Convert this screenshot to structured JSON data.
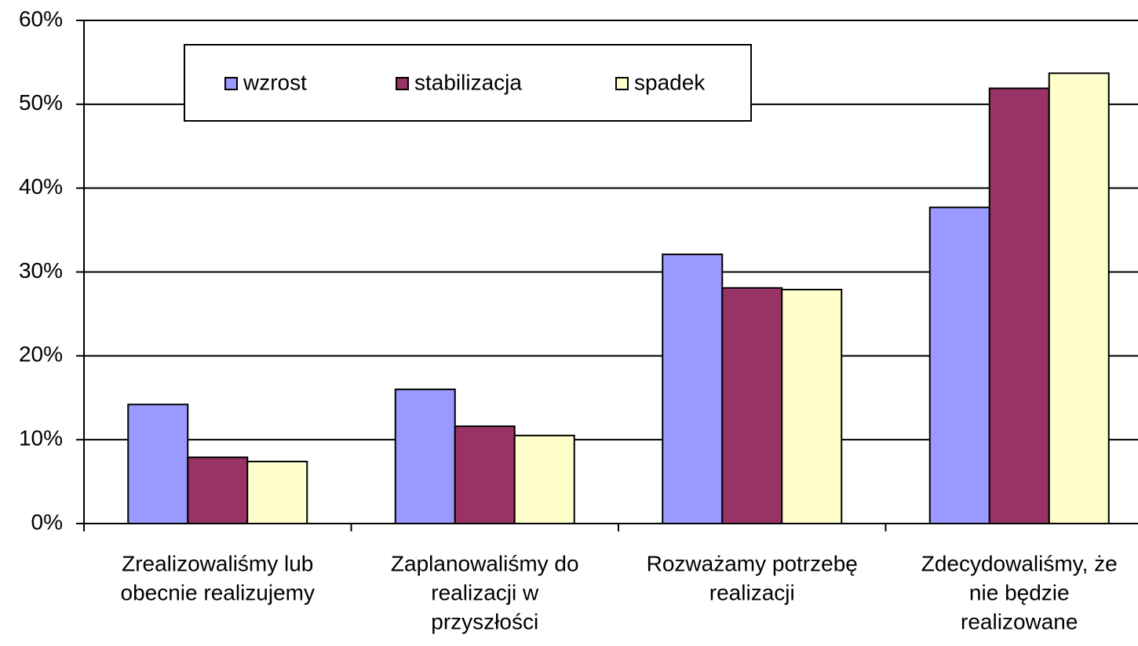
{
  "chart_data": {
    "type": "bar",
    "categories": [
      [
        "Zrealizowaliśmy lub",
        "obecnie realizujemy"
      ],
      [
        "Zaplanowaliśmy do",
        "realizacji w",
        "przyszłości"
      ],
      [
        "Rozważamy potrzebę",
        "realizacji"
      ],
      [
        "Zdecydowaliśmy, że",
        "nie będzie",
        "realizowane"
      ]
    ],
    "series": [
      {
        "name": "wzrost",
        "color": "#9999ff",
        "values": [
          14.2,
          16.0,
          32.1,
          37.7
        ]
      },
      {
        "name": "stabilizacja",
        "color": "#993366",
        "values": [
          7.9,
          11.6,
          28.1,
          51.9
        ]
      },
      {
        "name": "spadek",
        "color": "#ffffcc",
        "values": [
          7.4,
          10.5,
          27.9,
          53.7
        ]
      }
    ],
    "ylim": [
      0,
      60
    ],
    "yticks": [
      {
        "value": 0,
        "label": "0%"
      },
      {
        "value": 10,
        "label": "10%"
      },
      {
        "value": 20,
        "label": "20%"
      },
      {
        "value": 30,
        "label": "30%"
      },
      {
        "value": 40,
        "label": "40%"
      },
      {
        "value": 50,
        "label": "50%"
      },
      {
        "value": 60,
        "label": "60%"
      }
    ],
    "grid": true,
    "legend": "top-left"
  }
}
